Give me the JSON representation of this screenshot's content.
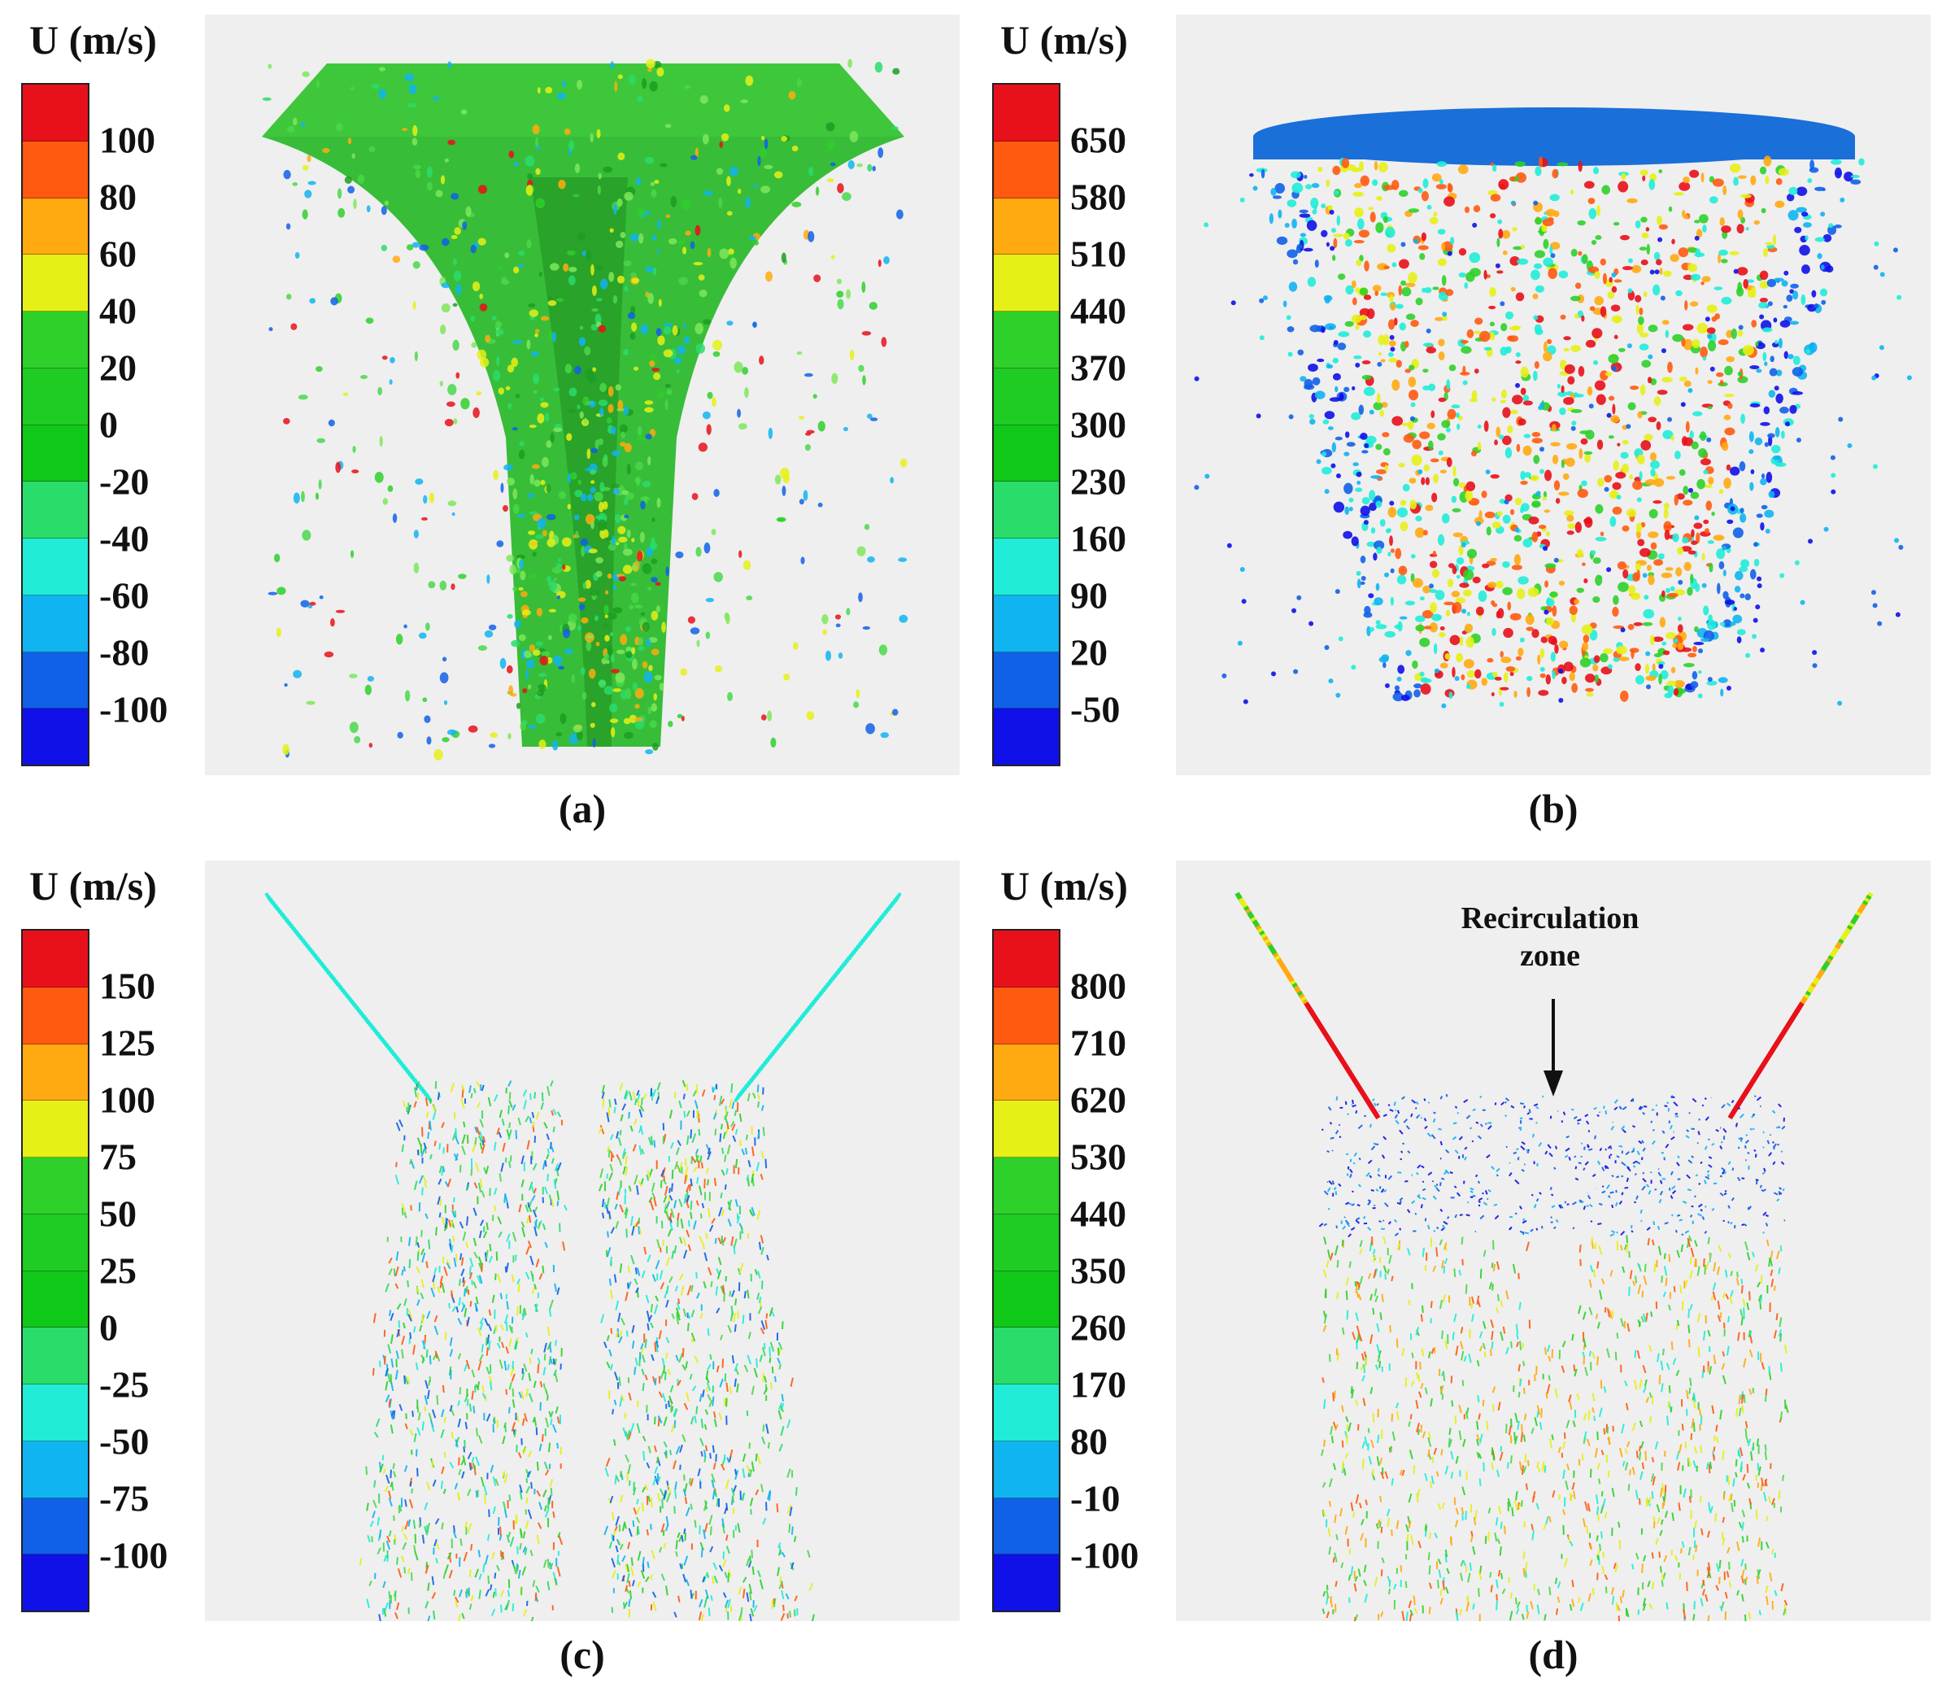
{
  "colors": {
    "scale": [
      "#e8101a",
      "#ff5a10",
      "#ffaa10",
      "#e6f016",
      "#2ed02a",
      "#1ecc24",
      "#10c818",
      "#2adc6a",
      "#20ecd8",
      "#10b4f0",
      "#1060e8",
      "#1010e8"
    ]
  },
  "panels": [
    {
      "id": "a",
      "unit_label": "U (m/s)",
      "ticks": [
        "100",
        "80",
        "60",
        "40",
        "20",
        "0",
        "-20",
        "-40",
        "-60",
        "-80",
        "-100"
      ],
      "caption": "(a)",
      "scene": "spray-cone"
    },
    {
      "id": "b",
      "unit_label": "U (m/s)",
      "ticks": [
        "650",
        "580",
        "510",
        "440",
        "370",
        "300",
        "230",
        "160",
        "90",
        "20",
        "-50"
      ],
      "caption": "(b)",
      "scene": "droplet-cloud"
    },
    {
      "id": "c",
      "unit_label": "U (m/s)",
      "ticks": [
        "150",
        "125",
        "100",
        "75",
        "50",
        "25",
        "0",
        "-25",
        "-50",
        "-75",
        "-100"
      ],
      "caption": "(c)",
      "scene": "vector-slice-low"
    },
    {
      "id": "d",
      "unit_label": "U (m/s)",
      "ticks": [
        "800",
        "710",
        "620",
        "530",
        "440",
        "350",
        "260",
        "170",
        "80",
        "-10",
        "-100"
      ],
      "caption": "(d)",
      "scene": "vector-slice-high",
      "annotation": {
        "line1": "Recirculation",
        "line2": "zone"
      }
    }
  ]
}
